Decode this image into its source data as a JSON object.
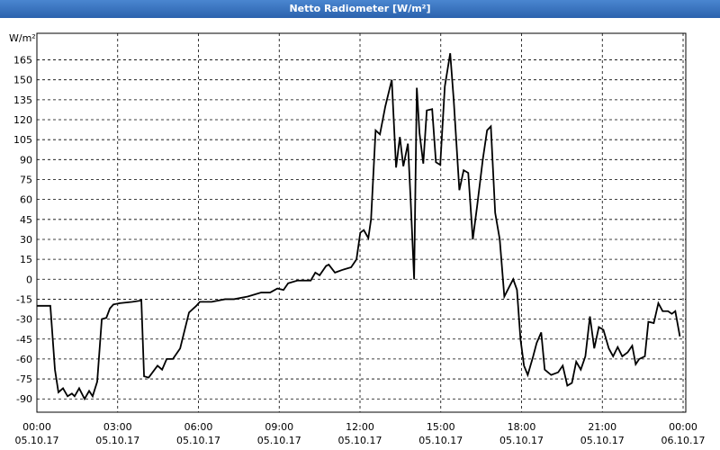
{
  "chart_data": {
    "type": "line",
    "title": "Netto Radiometer [W/m²]",
    "y_label": "W/m²",
    "color": "#000000",
    "grid": true,
    "x": [
      0,
      0.5,
      0.67,
      0.8,
      0.97,
      1.14,
      1.3,
      1.4,
      1.57,
      1.77,
      1.94,
      2.07,
      2.24,
      2.41,
      2.58,
      2.71,
      2.84,
      3.08,
      3.55,
      3.88,
      3.98,
      4.15,
      4.48,
      4.65,
      4.82,
      5.05,
      5.32,
      5.65,
      5.92,
      6.05,
      6.49,
      6.99,
      7.32,
      7.83,
      8.33,
      8.66,
      8.93,
      9.16,
      9.33,
      9.67,
      10.17,
      10.34,
      10.5,
      10.74,
      10.84,
      11.07,
      11.34,
      11.67,
      11.87,
      12.01,
      12.14,
      12.31,
      12.41,
      12.58,
      12.74,
      12.94,
      13.18,
      13.34,
      13.48,
      13.61,
      13.78,
      13.88,
      14.01,
      14.11,
      14.21,
      14.35,
      14.48,
      14.68,
      14.82,
      14.98,
      15.15,
      15.35,
      15.48,
      15.69,
      15.85,
      16.02,
      16.19,
      16.35,
      16.56,
      16.72,
      16.86,
      17.02,
      17.19,
      17.36,
      17.56,
      17.69,
      17.83,
      17.96,
      18.09,
      18.23,
      18.43,
      18.56,
      18.73,
      18.86,
      19.1,
      19.36,
      19.53,
      19.7,
      19.87,
      20.03,
      20.2,
      20.37,
      20.54,
      20.7,
      20.87,
      21.04,
      21.24,
      21.4,
      21.57,
      21.74,
      21.94,
      22.11,
      22.24,
      22.37,
      22.58,
      22.71,
      22.91,
      23.08,
      23.24,
      23.44,
      23.58,
      23.71,
      23.88
    ],
    "values": [
      -20,
      -20,
      -68,
      -85,
      -82,
      -88,
      -86,
      -88,
      -82,
      -90,
      -84,
      -88,
      -77,
      -30,
      -29,
      -22,
      -19,
      -18,
      -17,
      -16,
      -73,
      -74,
      -65,
      -68,
      -60,
      -60,
      -52,
      -25,
      -20,
      -17,
      -17,
      -15,
      -15,
      -13,
      -10,
      -10,
      -7,
      -8,
      -3,
      -1,
      -1,
      5,
      3,
      10,
      11,
      5,
      7,
      9,
      15,
      35,
      37,
      31,
      45,
      112,
      109,
      130,
      150,
      84,
      107,
      85,
      102,
      60,
      0,
      144,
      110,
      87,
      127,
      128,
      88,
      86,
      145,
      170,
      135,
      67,
      82,
      80,
      30,
      55,
      90,
      112,
      115,
      50,
      30,
      -13,
      -5,
      0,
      -8,
      -45,
      -65,
      -72,
      -58,
      -48,
      -40,
      -68,
      -72,
      -70,
      -65,
      -80,
      -78,
      -62,
      -68,
      -58,
      -28,
      -52,
      -36,
      -38,
      -52,
      -58,
      -51,
      -58,
      -55,
      -50,
      -64,
      -60,
      -58,
      -32,
      -33,
      -18,
      -24,
      -24,
      -26,
      -24,
      -43
    ],
    "xlim": [
      0,
      24.1
    ],
    "xticks": [
      {
        "value": 0,
        "label": "00:00",
        "date": "05.10.17"
      },
      {
        "value": 3,
        "label": "03:00",
        "date": "05.10.17"
      },
      {
        "value": 6,
        "label": "06:00",
        "date": "05.10.17"
      },
      {
        "value": 9,
        "label": "09:00",
        "date": "05.10.17"
      },
      {
        "value": 12,
        "label": "12:00",
        "date": "05.10.17"
      },
      {
        "value": 15,
        "label": "15:00",
        "date": "05.10.17"
      },
      {
        "value": 18,
        "label": "18:00",
        "date": "05.10.17"
      },
      {
        "value": 21,
        "label": "21:00",
        "date": "05.10.17"
      },
      {
        "value": 24,
        "label": "00:00",
        "date": "06.10.17"
      }
    ],
    "ylim": [
      -100,
      185
    ],
    "yticks": [
      -90,
      -75,
      -60,
      -45,
      -30,
      -15,
      0,
      15,
      30,
      45,
      60,
      75,
      90,
      105,
      120,
      135,
      150,
      165
    ]
  }
}
